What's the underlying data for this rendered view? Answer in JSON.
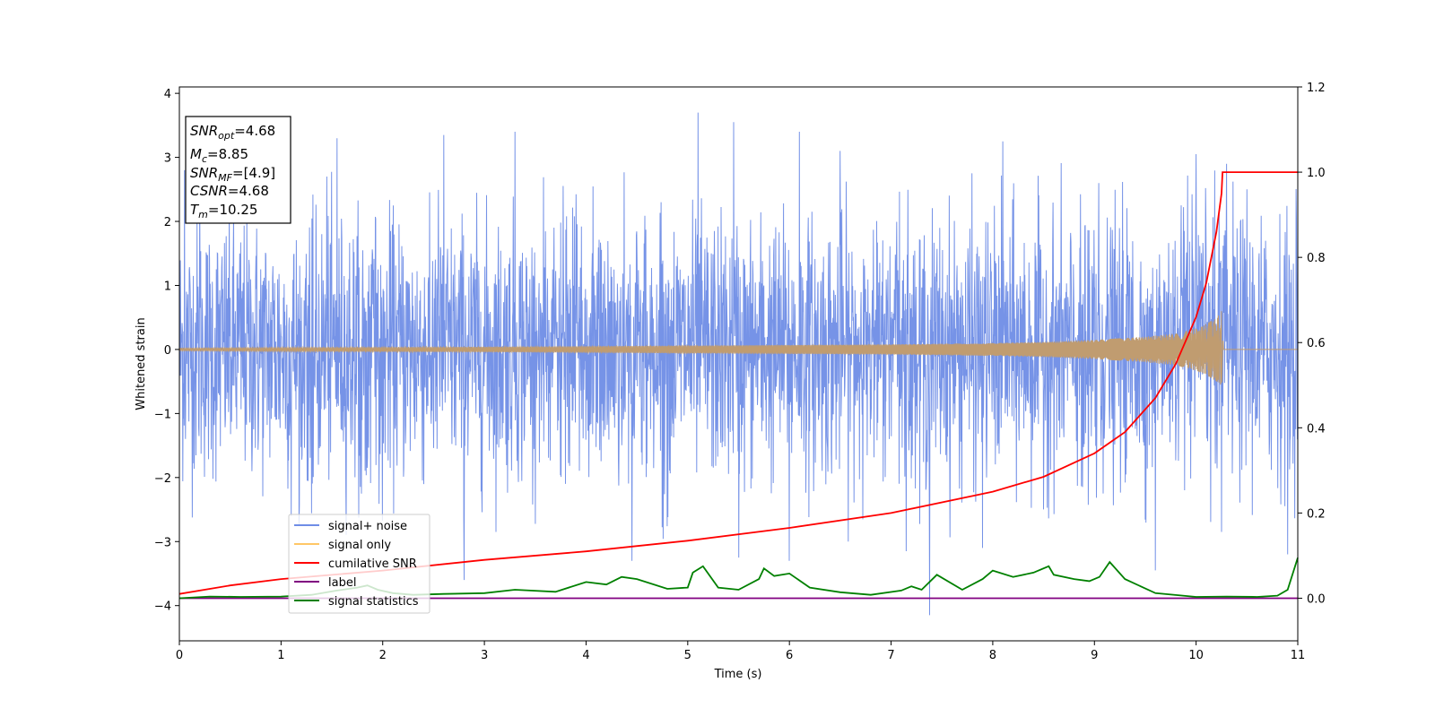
{
  "chart_data": {
    "type": "line",
    "title": "",
    "xlabel": "Time (s)",
    "ylabel": "Whitened strain",
    "xlim": [
      0,
      11
    ],
    "ylim": [
      -4.55,
      4.1
    ],
    "y2lim": [
      -0.1,
      1.2
    ],
    "x_ticks": [
      "0",
      "1",
      "2",
      "3",
      "4",
      "5",
      "6",
      "7",
      "8",
      "9",
      "10",
      "11"
    ],
    "y_ticks": [
      "−4",
      "−3",
      "−2",
      "−1",
      "0",
      "1",
      "2",
      "3",
      "4"
    ],
    "y2_ticks": [
      "0.0",
      "0.2",
      "0.4",
      "0.6",
      "0.8",
      "1.0",
      "1.2"
    ],
    "grid": false,
    "legend": {
      "placement": "lower-left",
      "entries": [
        "signal+ noise",
        "signal only",
        "cumilative SNR",
        "label",
        "signal statistics"
      ]
    },
    "annotation": {
      "snr_opt": "4.68",
      "mc": "8.85",
      "snr_mf": "[4.9]",
      "csnr": "4.68",
      "tm": "10.25"
    },
    "colors": {
      "noise": "#6f8de6",
      "signal": "#c09c70",
      "signal_legend": "#ffc766",
      "csnr": "#ff0000",
      "label": "#800080",
      "stats": "#008000"
    },
    "series": [
      {
        "name": "signal+ noise",
        "axis": "left",
        "description_kind": "whitened noise, amplitude envelope",
        "x": [
          0,
          11
        ],
        "y_min": -4.15,
        "y_max": 3.7,
        "spikes": [
          [
            0.05,
            2.8
          ],
          [
            0.2,
            2.5
          ],
          [
            1.45,
            2.7
          ],
          [
            1.55,
            3.3
          ],
          [
            2.6,
            3.35
          ],
          [
            3.3,
            3.4
          ],
          [
            5.1,
            3.7
          ],
          [
            5.45,
            3.55
          ],
          [
            6.1,
            3.4
          ],
          [
            6.5,
            3.1
          ],
          [
            8.1,
            3.25
          ],
          [
            10.0,
            3.05
          ],
          [
            10.3,
            2.9
          ],
          [
            10.5,
            2.5
          ],
          [
            1.1,
            -2.6
          ],
          [
            2.8,
            -3.6
          ],
          [
            4.45,
            -3.3
          ],
          [
            5.5,
            -3.25
          ],
          [
            6.0,
            -3.3
          ],
          [
            7.15,
            -3.15
          ],
          [
            7.38,
            -4.15
          ],
          [
            7.9,
            -3.1
          ],
          [
            9.6,
            -3.45
          ],
          [
            10.25,
            -2.85
          ],
          [
            10.9,
            -3.2
          ]
        ]
      },
      {
        "name": "signal only",
        "axis": "left",
        "x": [
          0,
          1,
          2,
          3,
          4,
          5,
          6,
          7,
          8,
          8.5,
          9,
          9.5,
          9.8,
          10.0,
          10.1,
          10.2,
          10.25,
          10.27,
          11
        ],
        "envelope": [
          0.02,
          0.03,
          0.035,
          0.04,
          0.05,
          0.06,
          0.07,
          0.08,
          0.1,
          0.12,
          0.15,
          0.2,
          0.25,
          0.33,
          0.4,
          0.5,
          0.6,
          0.0,
          0.0
        ]
      },
      {
        "name": "cumilative SNR",
        "axis": "right",
        "x": [
          0,
          0.5,
          1,
          2,
          3,
          4,
          5,
          6,
          7,
          8,
          8.5,
          9,
          9.3,
          9.6,
          9.8,
          10.0,
          10.1,
          10.2,
          10.25,
          10.26,
          11
        ],
        "y": [
          0.01,
          0.03,
          0.045,
          0.065,
          0.09,
          0.11,
          0.135,
          0.165,
          0.2,
          0.25,
          0.285,
          0.34,
          0.39,
          0.47,
          0.55,
          0.66,
          0.74,
          0.86,
          0.95,
          1.0,
          1.0
        ]
      },
      {
        "name": "label",
        "axis": "right",
        "x": [
          0,
          11
        ],
        "y": [
          0.0,
          0.0
        ]
      },
      {
        "name": "signal statistics",
        "axis": "right",
        "x": [
          0,
          0.3,
          0.6,
          1.0,
          1.3,
          1.55,
          1.75,
          1.85,
          1.95,
          2.1,
          2.3,
          2.6,
          3.0,
          3.3,
          3.7,
          4.0,
          4.2,
          4.35,
          4.5,
          4.8,
          5.0,
          5.05,
          5.15,
          5.3,
          5.5,
          5.7,
          5.75,
          5.85,
          6.0,
          6.2,
          6.5,
          6.8,
          7.1,
          7.2,
          7.3,
          7.45,
          7.7,
          7.9,
          8.0,
          8.2,
          8.4,
          8.55,
          8.6,
          8.8,
          8.95,
          9.05,
          9.15,
          9.3,
          9.6,
          10.0,
          10.3,
          10.6,
          10.8,
          10.9,
          11.0
        ],
        "y": [
          0.0,
          0.004,
          0.003,
          0.004,
          0.008,
          0.018,
          0.025,
          0.03,
          0.02,
          0.012,
          0.008,
          0.01,
          0.012,
          0.02,
          0.015,
          0.038,
          0.032,
          0.05,
          0.045,
          0.022,
          0.025,
          0.06,
          0.075,
          0.025,
          0.02,
          0.045,
          0.07,
          0.052,
          0.058,
          0.025,
          0.014,
          0.008,
          0.018,
          0.028,
          0.02,
          0.055,
          0.02,
          0.045,
          0.065,
          0.05,
          0.06,
          0.075,
          0.055,
          0.045,
          0.04,
          0.05,
          0.085,
          0.045,
          0.012,
          0.003,
          0.004,
          0.003,
          0.006,
          0.02,
          0.095
        ]
      }
    ]
  }
}
